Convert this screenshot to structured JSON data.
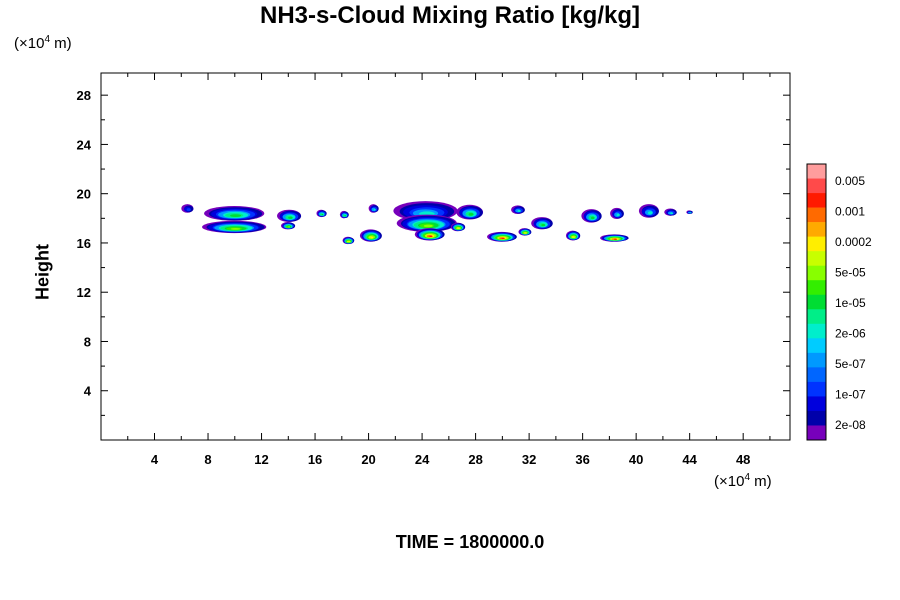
{
  "chart_data": {
    "type": "heatmap",
    "title": "NH3-s-Cloud Mixing Ratio [kg/kg]",
    "xlabel": "",
    "ylabel": "Height",
    "x_unit_prefix": "(×10",
    "x_unit_exp": "4",
    "x_unit_suffix": " m)",
    "y_unit_prefix": "(×10",
    "y_unit_exp": "4",
    "y_unit_suffix": " m)",
    "xlim": [
      0,
      51.5
    ],
    "ylim": [
      0,
      29.8
    ],
    "xticks": [
      4,
      8,
      12,
      16,
      20,
      24,
      28,
      32,
      36,
      40,
      44,
      48
    ],
    "yticks": [
      4,
      8,
      12,
      16,
      20,
      24,
      28
    ],
    "footer": "TIME = 1800000.0",
    "colorbar": {
      "labels": [
        "0.005",
        "0.001",
        "0.0002",
        "5e-05",
        "1e-05",
        "2e-06",
        "5e-07",
        "1e-07",
        "2e-08"
      ],
      "colors": [
        "#ff9d9d",
        "#ff4a4a",
        "#ff1a00",
        "#ff6a00",
        "#ffaa00",
        "#ffee00",
        "#c8ff00",
        "#88ff00",
        "#33ee00",
        "#00dd33",
        "#00ee88",
        "#00eecc",
        "#00ccff",
        "#0099ff",
        "#0066ff",
        "#0033ff",
        "#0000dd",
        "#0000aa",
        "#7700bb"
      ]
    },
    "cloud_blobs": [
      {
        "x": 6.5,
        "y": 18.8,
        "w": 0.9,
        "h": 0.7,
        "level": 0
      },
      {
        "x": 10.0,
        "y": 18.4,
        "w": 4.5,
        "h": 1.2,
        "level": 2
      },
      {
        "x": 10.0,
        "y": 17.3,
        "w": 4.8,
        "h": 1.0,
        "level": 3
      },
      {
        "x": 14.1,
        "y": 18.2,
        "w": 1.8,
        "h": 1.0,
        "level": 2
      },
      {
        "x": 14.0,
        "y": 17.4,
        "w": 1.0,
        "h": 0.6,
        "level": 3
      },
      {
        "x": 16.5,
        "y": 18.4,
        "w": 0.7,
        "h": 0.6,
        "level": 2
      },
      {
        "x": 18.2,
        "y": 18.3,
        "w": 0.6,
        "h": 0.6,
        "level": 2
      },
      {
        "x": 18.5,
        "y": 16.2,
        "w": 0.8,
        "h": 0.6,
        "level": 4
      },
      {
        "x": 20.2,
        "y": 16.6,
        "w": 1.6,
        "h": 1.0,
        "level": 4
      },
      {
        "x": 20.4,
        "y": 18.8,
        "w": 0.7,
        "h": 0.7,
        "level": 1
      },
      {
        "x": 24.3,
        "y": 18.6,
        "w": 4.8,
        "h": 1.6,
        "level": 1
      },
      {
        "x": 24.4,
        "y": 17.6,
        "w": 4.5,
        "h": 1.4,
        "level": 3
      },
      {
        "x": 24.6,
        "y": 16.7,
        "w": 2.2,
        "h": 1.0,
        "level": 6
      },
      {
        "x": 27.6,
        "y": 18.5,
        "w": 2.0,
        "h": 1.2,
        "level": 2
      },
      {
        "x": 26.7,
        "y": 17.3,
        "w": 1.0,
        "h": 0.7,
        "level": 4
      },
      {
        "x": 30.0,
        "y": 16.5,
        "w": 2.2,
        "h": 0.8,
        "level": 5
      },
      {
        "x": 31.2,
        "y": 18.7,
        "w": 1.0,
        "h": 0.7,
        "level": 1
      },
      {
        "x": 31.7,
        "y": 16.9,
        "w": 0.9,
        "h": 0.6,
        "level": 4
      },
      {
        "x": 33.0,
        "y": 17.6,
        "w": 1.6,
        "h": 1.0,
        "level": 2
      },
      {
        "x": 35.3,
        "y": 16.6,
        "w": 1.0,
        "h": 0.8,
        "level": 4
      },
      {
        "x": 36.7,
        "y": 18.2,
        "w": 1.5,
        "h": 1.1,
        "level": 2
      },
      {
        "x": 38.4,
        "y": 16.4,
        "w": 2.1,
        "h": 0.6,
        "level": 5
      },
      {
        "x": 38.6,
        "y": 18.4,
        "w": 1.0,
        "h": 0.9,
        "level": 1
      },
      {
        "x": 41.0,
        "y": 18.6,
        "w": 1.5,
        "h": 1.1,
        "level": 1
      },
      {
        "x": 42.6,
        "y": 18.5,
        "w": 0.9,
        "h": 0.6,
        "level": 1
      },
      {
        "x": 44.0,
        "y": 18.5,
        "w": 0.4,
        "h": 0.3,
        "level": 1
      }
    ]
  }
}
